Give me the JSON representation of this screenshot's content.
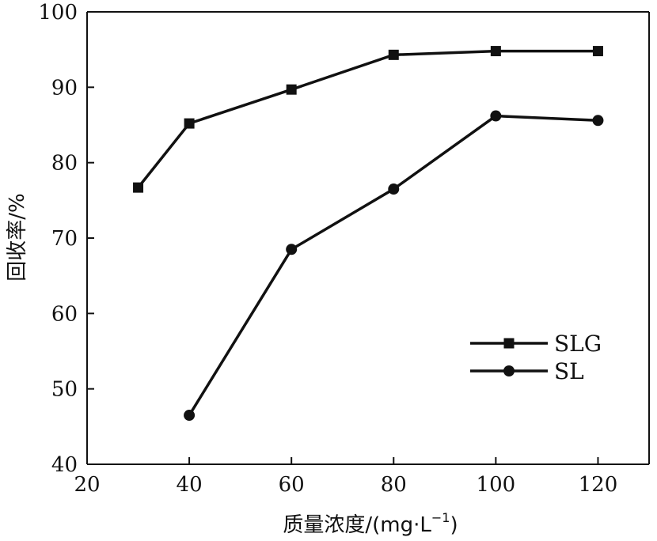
{
  "chart_data": {
    "type": "line",
    "title": "",
    "xlabel": "质量浓度/(mg·L",
    "xlabel_sup": "−1",
    "xlabel_close": ")",
    "ylabel": "回收率/%",
    "xlim": [
      20,
      130
    ],
    "ylim": [
      40,
      100
    ],
    "xticks": [
      20,
      40,
      60,
      80,
      100,
      120
    ],
    "yticks": [
      40,
      50,
      60,
      70,
      80,
      90,
      100
    ],
    "grid": false,
    "legend_position": "lower-right",
    "series": [
      {
        "name": "SLG",
        "marker": "square",
        "color": "#111111",
        "x": [
          30,
          40,
          60,
          80,
          100,
          120
        ],
        "y": [
          76.7,
          85.2,
          89.7,
          94.3,
          94.8,
          94.8
        ]
      },
      {
        "name": "SL",
        "marker": "circle",
        "color": "#111111",
        "x": [
          40,
          60,
          80,
          100,
          120
        ],
        "y": [
          46.5,
          68.5,
          76.5,
          86.2,
          85.6
        ]
      }
    ]
  }
}
